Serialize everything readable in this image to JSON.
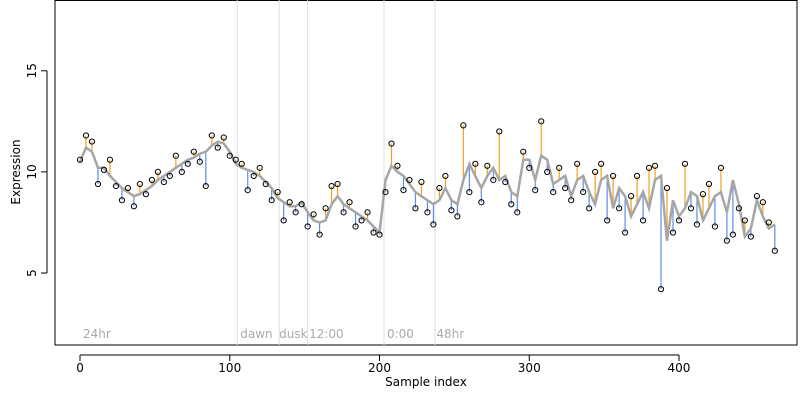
{
  "chart_data": {
    "type": "scatter",
    "xlabel": "Sample index",
    "ylabel": "Expression",
    "xlim": [
      -16.7,
      478.8
    ],
    "ylim": [
      1.44,
      18.5
    ],
    "xticks": [
      0,
      100,
      200,
      300,
      400
    ],
    "yticks": [
      5,
      10,
      15
    ],
    "vlines": [
      105,
      133,
      152,
      203,
      237
    ],
    "annotations": [
      {
        "x": 2,
        "text": "24hr"
      },
      {
        "x": 107,
        "text": "dawn"
      },
      {
        "x": 133,
        "text": "dusk"
      },
      {
        "x": 153,
        "text": "12:00"
      },
      {
        "x": 205,
        "text": "0:00"
      },
      {
        "x": 238,
        "text": "48hr"
      }
    ],
    "fit_color": "#a6a6a6",
    "above_color": "#f0a020",
    "below_color": "#5b8fe0",
    "x": [
      0,
      4,
      8,
      12,
      16,
      20,
      24,
      28,
      32,
      36,
      40,
      44,
      48,
      52,
      56,
      60,
      64,
      68,
      72,
      76,
      80,
      84,
      88,
      92,
      96,
      100,
      104,
      108,
      112,
      116,
      120,
      124,
      128,
      132,
      136,
      140,
      144,
      148,
      152,
      156,
      160,
      164,
      168,
      172,
      176,
      180,
      184,
      188,
      192,
      196,
      200,
      204,
      208,
      212,
      216,
      220,
      224,
      228,
      232,
      236,
      240,
      244,
      248,
      252,
      256,
      260,
      264,
      268,
      272,
      276,
      280,
      284,
      288,
      292,
      296,
      300,
      304,
      308,
      312,
      316,
      320,
      324,
      328,
      332,
      336,
      340,
      344,
      348,
      352,
      356,
      360,
      364,
      368,
      372,
      376,
      380,
      384,
      388,
      392,
      396,
      400,
      404,
      408,
      412,
      416,
      420,
      424,
      428,
      432,
      436,
      440,
      444,
      448,
      452,
      456,
      460,
      464
    ],
    "values": [
      10.6,
      11.8,
      11.5,
      9.4,
      10.1,
      10.6,
      9.3,
      8.6,
      9.2,
      8.3,
      9.4,
      8.9,
      9.6,
      10.0,
      9.5,
      9.8,
      10.8,
      10.0,
      10.4,
      11.0,
      10.5,
      9.3,
      11.8,
      11.2,
      11.7,
      10.8,
      10.6,
      10.4,
      9.1,
      9.8,
      10.2,
      9.4,
      8.6,
      9.0,
      7.6,
      8.5,
      8.0,
      8.4,
      7.3,
      7.9,
      6.9,
      8.2,
      9.3,
      9.4,
      8.0,
      8.5,
      7.3,
      7.6,
      8.0,
      7.0,
      6.9,
      9.0,
      11.4,
      10.3,
      9.1,
      9.6,
      8.2,
      9.5,
      8.0,
      7.4,
      9.2,
      9.8,
      8.1,
      7.8,
      12.3,
      9.0,
      10.4,
      8.5,
      10.3,
      9.6,
      12.0,
      9.5,
      8.4,
      8.0,
      11.0,
      10.2,
      9.1,
      12.5,
      10.0,
      9.0,
      10.2,
      9.2,
      8.6,
      10.4,
      9.0,
      8.2,
      10.0,
      10.4,
      7.6,
      9.8,
      8.2,
      7.0,
      8.8,
      9.8,
      7.6,
      10.2,
      10.3,
      4.2,
      9.2,
      7.0,
      7.6,
      10.4,
      8.2,
      7.4,
      8.9,
      9.4,
      7.3,
      10.2,
      6.6,
      6.9,
      8.2,
      7.6,
      6.8,
      8.8,
      8.5,
      7.5,
      6.1
    ],
    "fitted": [
      10.5,
      11.2,
      11.0,
      10.2,
      10.2,
      9.8,
      9.5,
      9.2,
      9.0,
      8.8,
      8.9,
      9.1,
      9.3,
      9.6,
      9.8,
      10.0,
      10.2,
      10.4,
      10.6,
      10.7,
      10.9,
      11.0,
      11.3,
      11.5,
      11.4,
      11.0,
      10.4,
      10.2,
      10.1,
      10.0,
      9.8,
      9.5,
      9.2,
      8.7,
      8.5,
      8.3,
      8.3,
      8.5,
      8.0,
      7.6,
      7.5,
      7.6,
      8.4,
      8.8,
      8.4,
      8.2,
      8.0,
      7.8,
      7.6,
      7.3,
      7.0,
      9.6,
      10.3,
      10.0,
      9.8,
      9.4,
      9.0,
      8.8,
      8.6,
      8.4,
      8.6,
      9.2,
      8.6,
      8.4,
      9.6,
      10.4,
      9.8,
      9.2,
      9.8,
      10.2,
      9.6,
      9.8,
      9.0,
      8.8,
      10.6,
      10.6,
      9.6,
      10.8,
      10.6,
      9.4,
      9.6,
      9.8,
      8.8,
      9.6,
      9.8,
      9.0,
      8.4,
      9.6,
      9.8,
      8.2,
      9.2,
      8.8,
      7.8,
      8.4,
      9.0,
      8.2,
      9.6,
      9.8,
      6.6,
      8.6,
      7.8,
      8.2,
      9.0,
      8.8,
      7.6,
      8.2,
      8.8,
      9.0,
      8.0,
      9.6,
      8.4,
      6.8,
      7.2,
      8.6,
      7.8,
      7.2,
      7.4
    ]
  }
}
